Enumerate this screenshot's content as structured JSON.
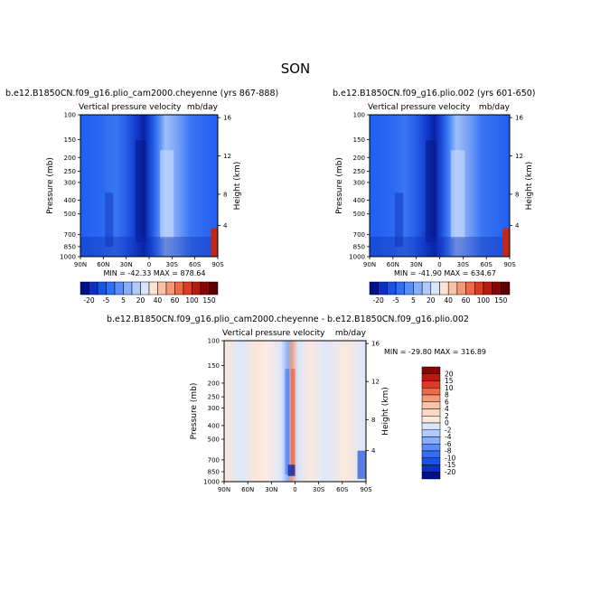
{
  "page_title": "SON",
  "chart_data": [
    {
      "type": "heatmap",
      "title": "b.e12.B1850CN.f09_g16.plio_cam2000.cheyenne (yrs 867-888)",
      "subtitle_left": "Vertical pressure velocity",
      "subtitle_right": "mb/day",
      "ylabel": "Pressure (mb)",
      "ylabel_right": "Height (km)",
      "x_ticks": [
        "90N",
        "60N",
        "30N",
        "0",
        "30S",
        "60S",
        "90S"
      ],
      "y_ticks": [
        "100",
        "150",
        "200",
        "250",
        "300",
        "400",
        "500",
        "700",
        "850",
        "1000"
      ],
      "y_ticks_right": [
        "16",
        "12",
        "8",
        "4"
      ],
      "stats": "MIN = -42.33   MAX = 878.64"
    },
    {
      "type": "heatmap",
      "title": "b.e12.B1850CN.f09_g16.plio.002 (yrs 601-650)",
      "subtitle_left": "Vertical pressure velocity",
      "subtitle_right": "mb/day",
      "ylabel": "Pressure (mb)",
      "ylabel_right": "Height (km)",
      "x_ticks": [
        "90N",
        "60N",
        "30N",
        "0",
        "30S",
        "60S",
        "90S"
      ],
      "y_ticks": [
        "100",
        "150",
        "200",
        "250",
        "300",
        "400",
        "500",
        "700",
        "850",
        "1000"
      ],
      "y_ticks_right": [
        "16",
        "12",
        "8",
        "4"
      ],
      "stats": "MIN = -41.90   MAX = 634.67"
    },
    {
      "type": "heatmap",
      "title": "b.e12.B1850CN.f09_g16.plio_cam2000.cheyenne - b.e12.B1850CN.f09_g16.plio.002",
      "subtitle_left": "Vertical pressure velocity",
      "subtitle_right": "mb/day",
      "ylabel": "Pressure (mb)",
      "ylabel_right": "Height (km)",
      "x_ticks": [
        "90N",
        "60N",
        "30N",
        "0",
        "30S",
        "60S",
        "90S"
      ],
      "y_ticks": [
        "100",
        "150",
        "200",
        "250",
        "300",
        "400",
        "500",
        "700",
        "850",
        "1000"
      ],
      "y_ticks_right": [
        "16",
        "12",
        "8",
        "4"
      ],
      "stats": "MIN = -29.80   MAX = 316.89"
    }
  ],
  "colorbar_abs": {
    "labels": [
      "-20",
      "-5",
      "5",
      "20",
      "40",
      "60",
      "100",
      "150"
    ],
    "colors": [
      "#000f8a",
      "#0a31c4",
      "#1852e6",
      "#2f6ef5",
      "#5a8ef7",
      "#86aef9",
      "#b0cbfb",
      "#d8e6fd",
      "#fde3d2",
      "#f9c2a6",
      "#f49876",
      "#ec6a48",
      "#da3b24",
      "#b81a10",
      "#8a0605",
      "#5e0000"
    ]
  },
  "colorbar_diff": {
    "labels": [
      "20",
      "15",
      "10",
      "8",
      "6",
      "4",
      "2",
      "0",
      "-2",
      "-4",
      "-6",
      "-8",
      "-10",
      "-15",
      "-20"
    ],
    "colors": [
      "#8a0605",
      "#b81a10",
      "#da3b24",
      "#ec6a48",
      "#f49876",
      "#f9c2a6",
      "#fcd9c6",
      "#fde9dc",
      "#d8e6fd",
      "#b0cbfb",
      "#86aef9",
      "#5a8ef7",
      "#2f6ef5",
      "#1852e6",
      "#0a31c4",
      "#000f8a"
    ]
  }
}
